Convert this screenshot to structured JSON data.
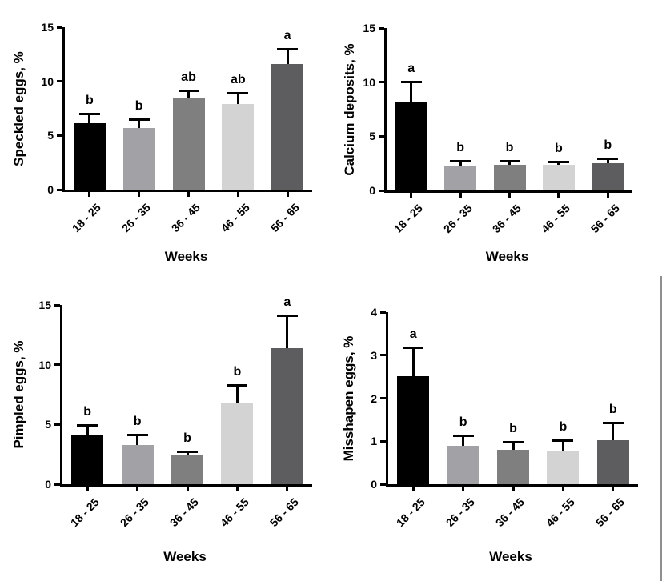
{
  "figure": {
    "background": "#ffffff",
    "bar_colors": [
      "#000000",
      "#a1a1a6",
      "#7f7f7f",
      "#d3d3d3",
      "#5d5d5f"
    ],
    "axis_color": "#000000",
    "text_color": "#000000",
    "page_edge_line_color": "#8f8f8f"
  },
  "chart_data": [
    {
      "type": "bar",
      "title": "",
      "ylabel": "Speckled eggs, %",
      "xlabel": "Weeks",
      "ylim": [
        0,
        15
      ],
      "yticks": [
        0,
        5,
        10,
        15
      ],
      "categories": [
        "18 - 25",
        "26 - 35",
        "36 - 45",
        "46 - 55",
        "56 - 65"
      ],
      "values": [
        6.1,
        5.7,
        8.4,
        7.9,
        11.6
      ],
      "upper_errors": [
        1.0,
        0.9,
        0.8,
        1.1,
        1.5
      ],
      "sig_letters": [
        "b",
        "b",
        "ab",
        "ab",
        "a"
      ],
      "grid": false,
      "legend": "none"
    },
    {
      "type": "bar",
      "title": "",
      "ylabel": "Calcium deposits, %",
      "xlabel": "Weeks",
      "ylim": [
        0,
        15
      ],
      "yticks": [
        0,
        5,
        10,
        15
      ],
      "categories": [
        "18 - 25",
        "26 - 35",
        "36 - 45",
        "46 - 55",
        "56 - 65"
      ],
      "values": [
        8.2,
        2.2,
        2.4,
        2.4,
        2.5
      ],
      "upper_errors": [
        1.9,
        0.6,
        0.4,
        0.3,
        0.5
      ],
      "sig_letters": [
        "a",
        "b",
        "b",
        "b",
        "b"
      ],
      "grid": false,
      "legend": "none"
    },
    {
      "type": "bar",
      "title": "",
      "ylabel": "Pimpled eggs, %",
      "xlabel": "Weeks",
      "ylim": [
        0,
        15
      ],
      "yticks": [
        0,
        5,
        10,
        15
      ],
      "categories": [
        "18 - 25",
        "26 - 35",
        "36 - 45",
        "46 - 55",
        "56 - 65"
      ],
      "values": [
        4.1,
        3.3,
        2.5,
        6.8,
        11.4
      ],
      "upper_errors": [
        0.9,
        0.9,
        0.3,
        1.6,
        2.8
      ],
      "sig_letters": [
        "b",
        "b",
        "b",
        "b",
        "a"
      ],
      "grid": false,
      "legend": "none"
    },
    {
      "type": "bar",
      "title": "",
      "ylabel": "Misshapen eggs, %",
      "xlabel": "Weeks",
      "ylim": [
        0,
        4
      ],
      "yticks": [
        0,
        1,
        2,
        3,
        4
      ],
      "categories": [
        "18 - 25",
        "26 - 35",
        "36 - 45",
        "46 - 55",
        "56 - 65"
      ],
      "values": [
        2.52,
        0.89,
        0.8,
        0.78,
        1.02
      ],
      "upper_errors": [
        0.68,
        0.27,
        0.2,
        0.27,
        0.43
      ],
      "sig_letters": [
        "a",
        "b",
        "b",
        "b",
        "b"
      ],
      "grid": false,
      "legend": "none"
    }
  ]
}
